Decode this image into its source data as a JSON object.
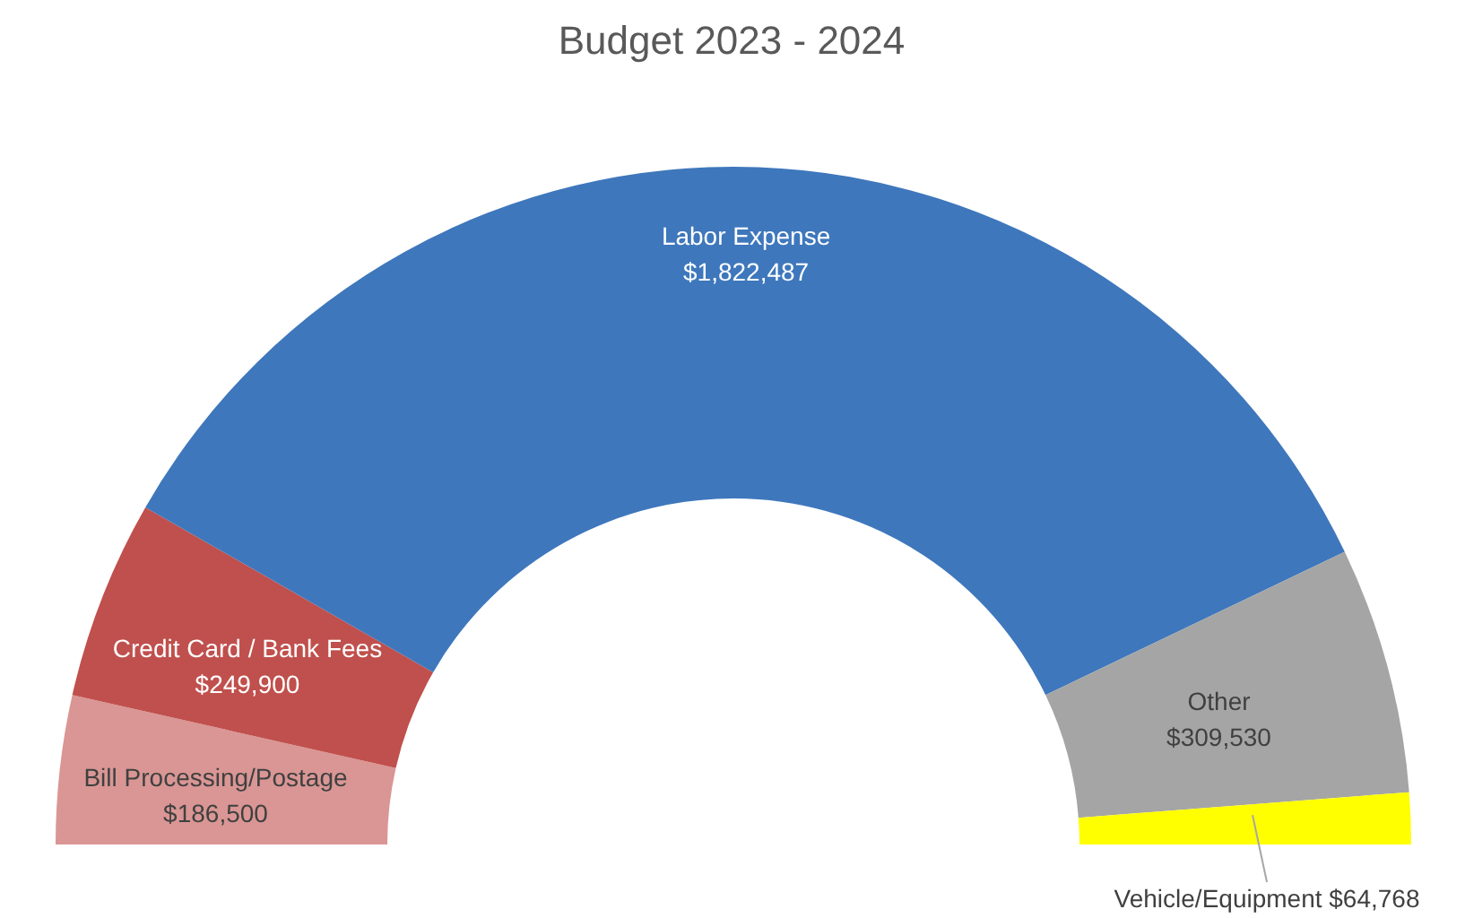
{
  "chart_data": {
    "type": "donut",
    "title": "Budget 2023 - 2024",
    "categories": [
      "Bill Processing/Postage",
      "Credit Card / Bank Fees",
      "Labor Expense",
      "Other",
      "Vehicle/Equipment"
    ],
    "values": [
      186500,
      249900,
      1822487,
      309530,
      64768
    ],
    "value_labels": [
      "$186,500",
      "$249,900",
      "$1,822,487",
      "$309,530",
      "$64,768"
    ],
    "colors": [
      "#d99694",
      "#c0504d",
      "#3e77bc",
      "#a5a5a5",
      "#ffff00"
    ],
    "legend": false
  }
}
